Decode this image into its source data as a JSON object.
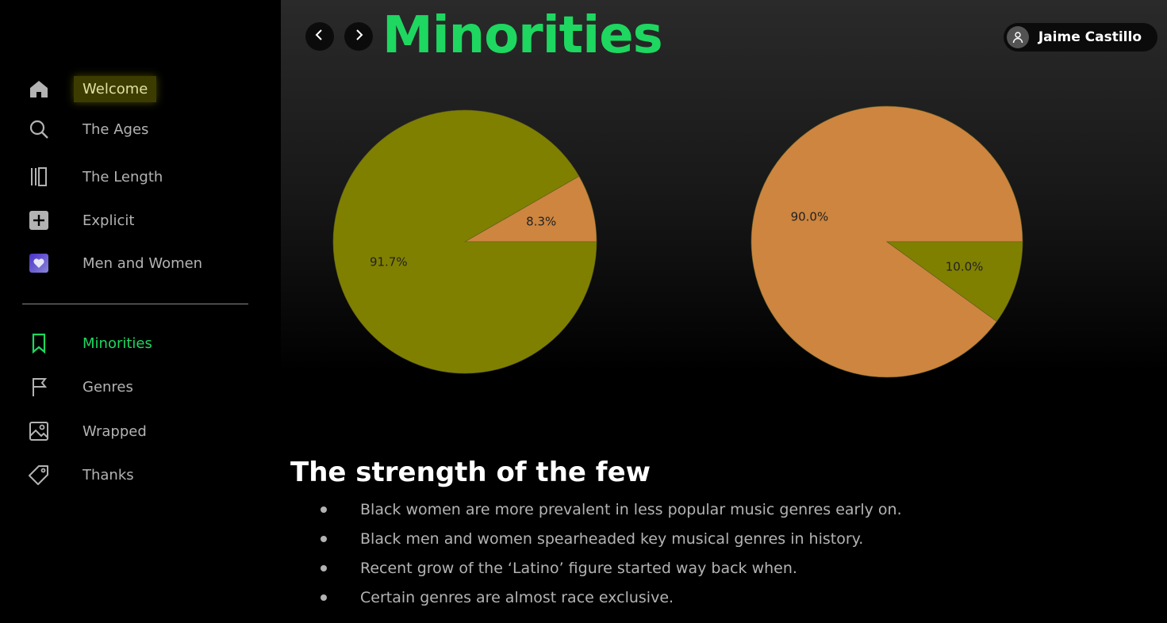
{
  "sidebar": {
    "items": [
      {
        "label": "Welcome",
        "icon": "home-icon"
      },
      {
        "label": "The Ages",
        "icon": "search-icon"
      },
      {
        "label": "The Length",
        "icon": "library-icon"
      },
      {
        "label": "Explicit",
        "icon": "plus-square-icon"
      },
      {
        "label": "Men and Women",
        "icon": "heart-square-icon"
      },
      {
        "label": "Minorities",
        "icon": "bookmark-icon"
      },
      {
        "label": "Genres",
        "icon": "flag-icon"
      },
      {
        "label": "Wrapped",
        "icon": "image-icon"
      },
      {
        "label": "Thanks",
        "icon": "tag-icon"
      }
    ]
  },
  "header": {
    "title": "Minorities",
    "user_name": "Jaime Castillo"
  },
  "colors": {
    "accent": "#1ed760",
    "olive": "#808000",
    "orange": "#cd853f"
  },
  "chart_data": [
    {
      "type": "pie",
      "slices": [
        {
          "label": "8.3%",
          "value": 8.3,
          "color": "#cd853f"
        },
        {
          "label": "91.7%",
          "value": 91.7,
          "color": "#808000"
        }
      ]
    },
    {
      "type": "pie",
      "slices": [
        {
          "label": "90.0%",
          "value": 90.0,
          "color": "#cd853f"
        },
        {
          "label": "10.0%",
          "value": 10.0,
          "color": "#808000"
        }
      ]
    }
  ],
  "section": {
    "title": "The strength of the few",
    "bullets": [
      "Black women are more prevalent in less popular music genres early on.",
      "Black men and women spearheaded key musical genres in history.",
      "Recent grow of the ‘Latino’ figure started way back when.",
      "Certain genres are almost race exclusive."
    ]
  }
}
